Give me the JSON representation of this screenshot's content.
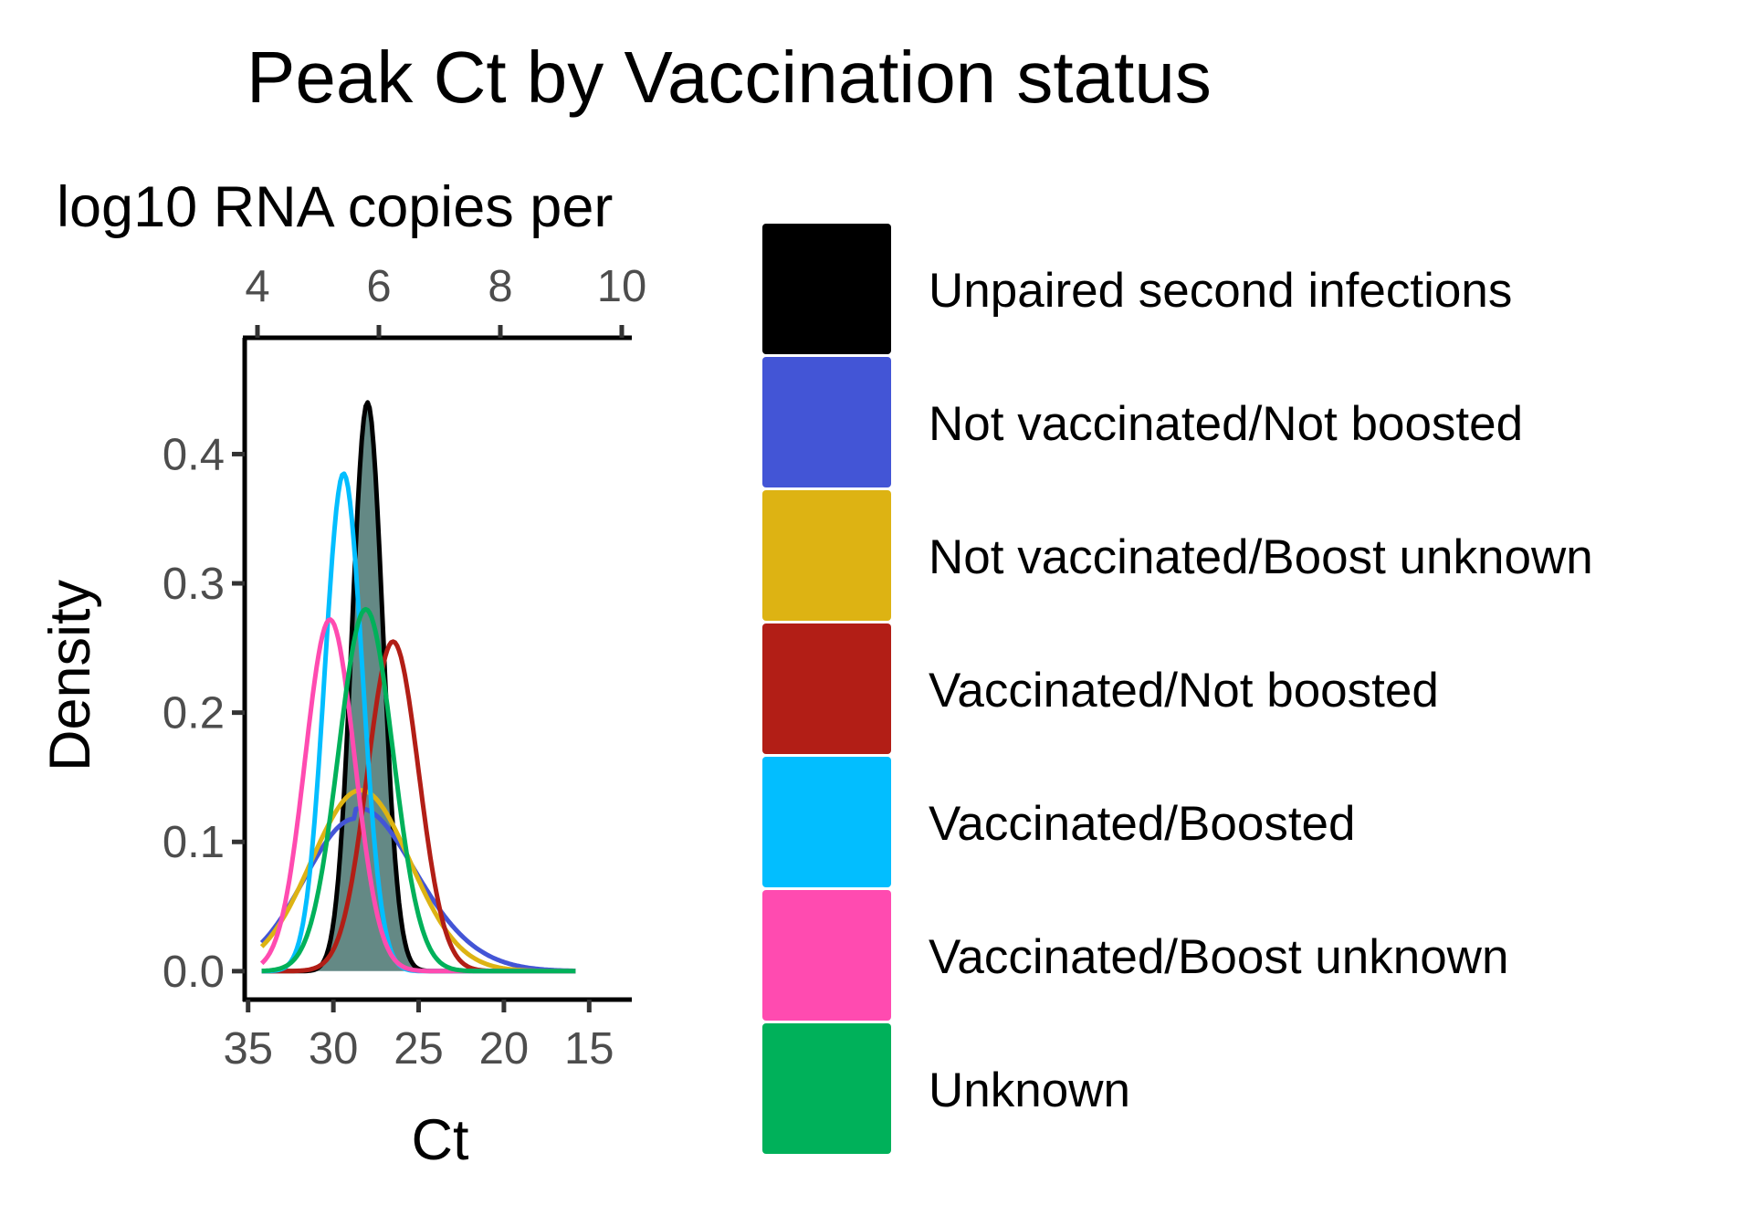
{
  "chart_data": {
    "type": "area",
    "title": "Peak Ct by Vaccination status",
    "top_axis_label": "log10 RNA copies per",
    "top_axis_ticks": [
      "4",
      "6",
      "8",
      "10"
    ],
    "top_axis_tick_values": [
      4,
      6,
      8,
      10
    ],
    "xlabel": "Ct",
    "ylabel": "Density",
    "x_reversed": true,
    "xlim": [
      35.2,
      12.5
    ],
    "ylim": [
      -0.022,
      0.49
    ],
    "x_ticks": [
      "35",
      "30",
      "25",
      "20",
      "15"
    ],
    "x_tick_values": [
      35,
      30,
      25,
      20,
      15
    ],
    "y_ticks": [
      "0.0",
      "0.1",
      "0.2",
      "0.3",
      "0.4"
    ],
    "y_tick_values": [
      0.0,
      0.1,
      0.2,
      0.3,
      0.4
    ],
    "grid": false,
    "legend_position": "right",
    "series": [
      {
        "name": "Unpaired second infections",
        "color": "#000000",
        "mean": 28.0,
        "sd": 0.9,
        "peak": 0.44,
        "filled": true
      },
      {
        "name": "Not vaccinated/Not boosted",
        "color": "#4355D6",
        "mean": 28.7,
        "sd": 3.0,
        "peak": 0.118,
        "tail_right": 0.018
      },
      {
        "name": "Not vaccinated/Boost unknown",
        "color": "#DDB313",
        "mean": 28.4,
        "sd": 2.9,
        "peak": 0.14
      },
      {
        "name": "Vaccinated/Not boosted",
        "color": "#B21E16",
        "mean": 26.5,
        "sd": 1.5,
        "peak": 0.255
      },
      {
        "name": "Vaccinated/Boosted",
        "color": "#02BEFF",
        "mean": 29.4,
        "sd": 1.1,
        "peak": 0.385
      },
      {
        "name": "Vaccinated/Boost unknown",
        "color": "#FF4BB0",
        "mean": 30.2,
        "sd": 1.45,
        "peak": 0.272
      },
      {
        "name": "Unknown",
        "color": "#00B15A",
        "mean": 28.1,
        "sd": 1.6,
        "peak": 0.28
      }
    ]
  }
}
